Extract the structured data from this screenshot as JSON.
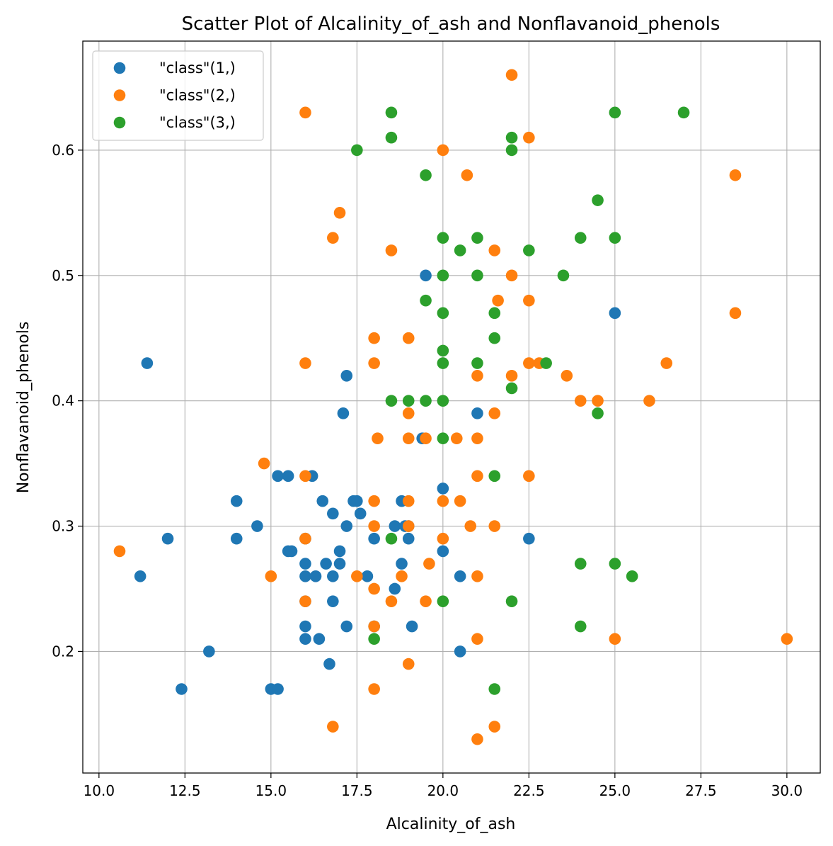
{
  "chart_data": {
    "type": "scatter",
    "title": "Scatter Plot of Alcalinity_of_ash and Nonflavanoid_phenols",
    "xlabel": "Alcalinity_of_ash",
    "ylabel": "Nonflavanoid_phenols",
    "xlim": [
      9.53,
      30.97
    ],
    "ylim": [
      0.103,
      0.687
    ],
    "xticks": [
      10.0,
      12.5,
      15.0,
      17.5,
      20.0,
      22.5,
      25.0,
      27.5,
      30.0
    ],
    "xtick_labels": [
      "10.0",
      "12.5",
      "15.0",
      "17.5",
      "20.0",
      "22.5",
      "25.0",
      "27.5",
      "30.0"
    ],
    "yticks": [
      0.2,
      0.3,
      0.4,
      0.5,
      0.6
    ],
    "ytick_labels": [
      "0.2",
      "0.3",
      "0.4",
      "0.5",
      "0.6"
    ],
    "grid": true,
    "legend_position": "top-left",
    "series": [
      {
        "name": "\"class\"(1,)",
        "color": "#1f77b4",
        "points": [
          [
            11.4,
            0.43
          ],
          [
            11.2,
            0.26
          ],
          [
            12.0,
            0.29
          ],
          [
            12.4,
            0.17
          ],
          [
            13.2,
            0.2
          ],
          [
            14.0,
            0.32
          ],
          [
            14.0,
            0.29
          ],
          [
            14.6,
            0.3
          ],
          [
            15.0,
            0.17
          ],
          [
            15.2,
            0.17
          ],
          [
            15.2,
            0.34
          ],
          [
            15.5,
            0.34
          ],
          [
            15.5,
            0.28
          ],
          [
            15.6,
            0.28
          ],
          [
            16.0,
            0.27
          ],
          [
            16.0,
            0.26
          ],
          [
            16.0,
            0.24
          ],
          [
            16.0,
            0.22
          ],
          [
            16.0,
            0.21
          ],
          [
            16.0,
            0.29
          ],
          [
            16.2,
            0.34
          ],
          [
            16.3,
            0.26
          ],
          [
            16.4,
            0.21
          ],
          [
            16.5,
            0.32
          ],
          [
            16.6,
            0.27
          ],
          [
            16.7,
            0.19
          ],
          [
            16.8,
            0.31
          ],
          [
            16.8,
            0.26
          ],
          [
            16.8,
            0.24
          ],
          [
            17.0,
            0.28
          ],
          [
            17.0,
            0.27
          ],
          [
            17.1,
            0.39
          ],
          [
            17.2,
            0.42
          ],
          [
            17.2,
            0.3
          ],
          [
            17.2,
            0.22
          ],
          [
            17.4,
            0.32
          ],
          [
            17.5,
            0.32
          ],
          [
            17.6,
            0.31
          ],
          [
            17.8,
            0.26
          ],
          [
            18.0,
            0.29
          ],
          [
            18.0,
            0.22
          ],
          [
            18.6,
            0.3
          ],
          [
            18.6,
            0.25
          ],
          [
            18.8,
            0.32
          ],
          [
            18.8,
            0.27
          ],
          [
            18.9,
            0.3
          ],
          [
            19.0,
            0.3
          ],
          [
            19.0,
            0.29
          ],
          [
            19.1,
            0.22
          ],
          [
            19.4,
            0.37
          ],
          [
            19.5,
            0.5
          ],
          [
            20.0,
            0.33
          ],
          [
            20.0,
            0.28
          ],
          [
            20.5,
            0.26
          ],
          [
            20.5,
            0.2
          ],
          [
            21.0,
            0.39
          ],
          [
            22.5,
            0.29
          ],
          [
            25.0,
            0.47
          ]
        ]
      },
      {
        "name": "\"class\"(2,)",
        "color": "#ff7f0e",
        "points": [
          [
            10.6,
            0.28
          ],
          [
            14.8,
            0.35
          ],
          [
            15.0,
            0.26
          ],
          [
            16.0,
            0.63
          ],
          [
            16.0,
            0.43
          ],
          [
            16.0,
            0.34
          ],
          [
            16.0,
            0.29
          ],
          [
            16.0,
            0.24
          ],
          [
            16.8,
            0.53
          ],
          [
            16.8,
            0.14
          ],
          [
            17.0,
            0.55
          ],
          [
            17.5,
            0.26
          ],
          [
            18.0,
            0.45
          ],
          [
            18.0,
            0.43
          ],
          [
            18.0,
            0.32
          ],
          [
            18.0,
            0.3
          ],
          [
            18.0,
            0.25
          ],
          [
            18.0,
            0.22
          ],
          [
            18.0,
            0.17
          ],
          [
            18.1,
            0.37
          ],
          [
            18.5,
            0.52
          ],
          [
            18.5,
            0.24
          ],
          [
            18.8,
            0.26
          ],
          [
            19.0,
            0.45
          ],
          [
            19.0,
            0.39
          ],
          [
            19.0,
            0.37
          ],
          [
            19.0,
            0.32
          ],
          [
            19.0,
            0.3
          ],
          [
            19.0,
            0.19
          ],
          [
            19.5,
            0.37
          ],
          [
            19.5,
            0.24
          ],
          [
            19.6,
            0.27
          ],
          [
            20.0,
            0.6
          ],
          [
            20.0,
            0.32
          ],
          [
            20.0,
            0.29
          ],
          [
            20.4,
            0.37
          ],
          [
            20.5,
            0.32
          ],
          [
            20.7,
            0.58
          ],
          [
            20.8,
            0.3
          ],
          [
            21.0,
            0.42
          ],
          [
            21.0,
            0.37
          ],
          [
            21.0,
            0.34
          ],
          [
            21.0,
            0.26
          ],
          [
            21.0,
            0.21
          ],
          [
            21.0,
            0.13
          ],
          [
            21.5,
            0.52
          ],
          [
            21.5,
            0.39
          ],
          [
            21.5,
            0.3
          ],
          [
            21.5,
            0.14
          ],
          [
            21.6,
            0.48
          ],
          [
            22.0,
            0.66
          ],
          [
            22.0,
            0.5
          ],
          [
            22.0,
            0.42
          ],
          [
            22.5,
            0.61
          ],
          [
            22.5,
            0.48
          ],
          [
            22.5,
            0.43
          ],
          [
            22.5,
            0.34
          ],
          [
            22.8,
            0.43
          ],
          [
            23.6,
            0.42
          ],
          [
            24.0,
            0.4
          ],
          [
            24.5,
            0.4
          ],
          [
            25.0,
            0.21
          ],
          [
            26.0,
            0.4
          ],
          [
            26.5,
            0.43
          ],
          [
            28.5,
            0.58
          ],
          [
            28.5,
            0.47
          ],
          [
            30.0,
            0.21
          ]
        ]
      },
      {
        "name": "\"class\"(3,)",
        "color": "#2ca02c",
        "points": [
          [
            17.5,
            0.6
          ],
          [
            18.0,
            0.21
          ],
          [
            18.5,
            0.63
          ],
          [
            18.5,
            0.61
          ],
          [
            18.5,
            0.4
          ],
          [
            18.5,
            0.29
          ],
          [
            19.0,
            0.4
          ],
          [
            19.5,
            0.58
          ],
          [
            19.5,
            0.48
          ],
          [
            19.5,
            0.4
          ],
          [
            20.0,
            0.53
          ],
          [
            20.0,
            0.5
          ],
          [
            20.0,
            0.47
          ],
          [
            20.0,
            0.44
          ],
          [
            20.0,
            0.43
          ],
          [
            20.0,
            0.4
          ],
          [
            20.0,
            0.37
          ],
          [
            20.0,
            0.24
          ],
          [
            20.5,
            0.52
          ],
          [
            21.0,
            0.53
          ],
          [
            21.0,
            0.5
          ],
          [
            21.0,
            0.43
          ],
          [
            21.5,
            0.47
          ],
          [
            21.5,
            0.45
          ],
          [
            21.5,
            0.34
          ],
          [
            21.5,
            0.17
          ],
          [
            22.0,
            0.61
          ],
          [
            22.0,
            0.6
          ],
          [
            22.0,
            0.41
          ],
          [
            22.0,
            0.24
          ],
          [
            22.5,
            0.52
          ],
          [
            23.0,
            0.43
          ],
          [
            23.5,
            0.5
          ],
          [
            24.0,
            0.53
          ],
          [
            24.0,
            0.27
          ],
          [
            24.0,
            0.22
          ],
          [
            24.5,
            0.56
          ],
          [
            24.5,
            0.39
          ],
          [
            25.0,
            0.63
          ],
          [
            25.0,
            0.53
          ],
          [
            25.0,
            0.27
          ],
          [
            25.5,
            0.26
          ],
          [
            27.0,
            0.63
          ]
        ]
      }
    ]
  }
}
